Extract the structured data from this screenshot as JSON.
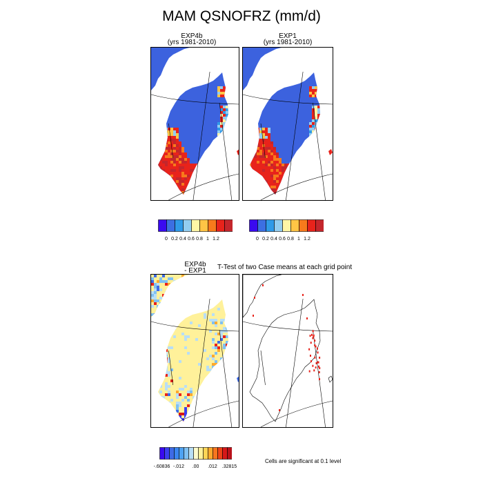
{
  "title": "MAM QSNOFRZ (mm/d)",
  "panels": {
    "p1": {
      "line1": "EXP4b",
      "line2": "(yrs 1981-2010)"
    },
    "p2": {
      "line1": "EXP1",
      "line2": "(yrs 1981-2010)"
    },
    "p3": {
      "line1": "EXP4b",
      "line2": "- EXP1"
    },
    "p4": {
      "title": "T-Test of two Case means at each grid point"
    }
  },
  "colorbar_top": {
    "colors": [
      "#3a0af0",
      "#3c6fe2",
      "#2f9ae8",
      "#93cdf0",
      "#fff6a6",
      "#ffc545",
      "#f77a1c",
      "#e8231b",
      "#c4262c"
    ],
    "ticks": [
      "0",
      "0.2",
      "0.4",
      "0.6",
      "0.8",
      "1",
      "1.2"
    ]
  },
  "colorbar_bottom": {
    "colors": [
      "#3a0af0",
      "#3b3ef0",
      "#3e6be6",
      "#3a86f0",
      "#4ea2f2",
      "#7fc0f2",
      "#b8def5",
      "#fdfbcc",
      "#fff19a",
      "#ffd455",
      "#ffaa2d",
      "#f7761e",
      "#ee4418",
      "#d61818",
      "#b9121a"
    ],
    "ticks": [
      "-.60836",
      "-.012",
      ".00",
      ".012",
      ".32815"
    ]
  },
  "significance_note": "Cells are significant at 0.1 level",
  "chart_data": [
    {
      "type": "heatmap",
      "title": "EXP4b",
      "subtitle": "(yrs 1981-2010)",
      "variable": "QSNOFRZ",
      "units": "mm/d",
      "season": "MAM",
      "color_levels": [
        0,
        0.2,
        0.4,
        0.6,
        0.8,
        1,
        1.2
      ],
      "region": "Greenland"
    },
    {
      "type": "heatmap",
      "title": "EXP1",
      "subtitle": "(yrs 1981-2010)",
      "variable": "QSNOFRZ",
      "units": "mm/d",
      "season": "MAM",
      "color_levels": [
        0,
        0.2,
        0.4,
        0.6,
        0.8,
        1,
        1.2
      ],
      "region": "Greenland"
    },
    {
      "type": "heatmap",
      "title": "EXP4b - EXP1",
      "color_range": [
        -0.60836,
        0.32815
      ],
      "labeled_levels": [
        -0.60836,
        -0.012,
        0.0,
        0.012,
        0.32815
      ],
      "region": "Greenland"
    },
    {
      "type": "heatmap",
      "title": "T-Test of two Case means at each grid point",
      "note": "Cells are significant at 0.1 level",
      "significance_level": 0.1,
      "region": "Greenland"
    }
  ]
}
